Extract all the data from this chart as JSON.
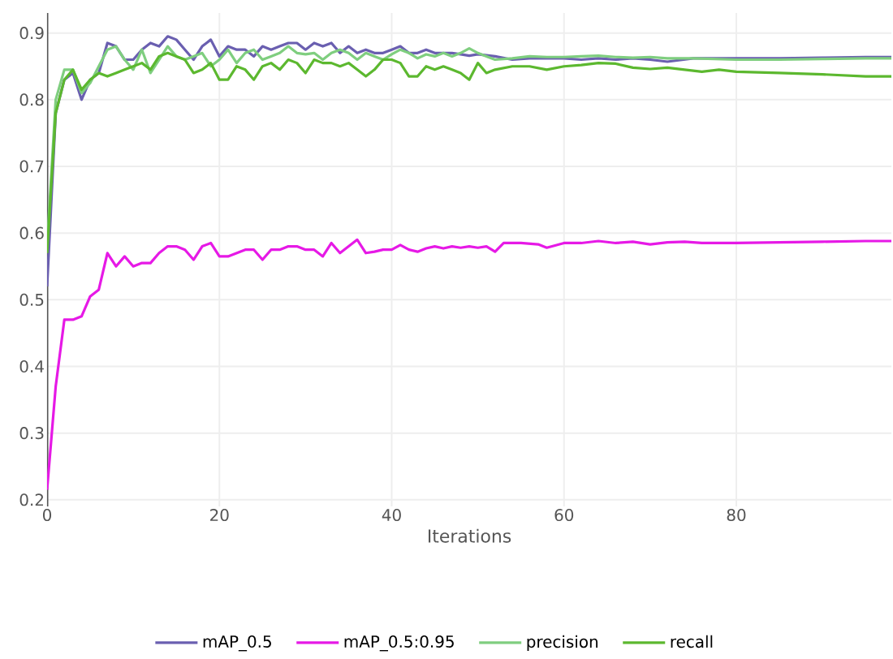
{
  "chart_data": {
    "type": "line",
    "xlabel": "Iterations",
    "xlim": [
      0,
      98
    ],
    "ylim": [
      0.19,
      0.93
    ],
    "xticks": [
      0,
      20,
      40,
      60,
      80
    ],
    "yticks": [
      0.2,
      0.3,
      0.4,
      0.5,
      0.6,
      0.7,
      0.8,
      0.9
    ],
    "grid": true,
    "legend": "bottom",
    "line_style": "solid",
    "marker": "none",
    "series": [
      {
        "name": "mAP_0.5",
        "color": "#6a5fb0",
        "x": [
          0,
          1,
          2,
          3,
          4,
          5,
          6,
          7,
          8,
          9,
          10,
          11,
          12,
          13,
          14,
          15,
          16,
          17,
          18,
          19,
          20,
          21,
          22,
          23,
          24,
          25,
          26,
          27,
          28,
          29,
          30,
          31,
          32,
          33,
          34,
          35,
          36,
          37,
          38,
          39,
          40,
          41,
          42,
          43,
          44,
          45,
          46,
          47,
          48,
          49,
          50,
          52,
          54,
          56,
          58,
          60,
          62,
          64,
          66,
          68,
          70,
          72,
          75,
          80,
          85,
          90,
          95,
          98
        ],
        "values": [
          0.52,
          0.78,
          0.83,
          0.84,
          0.8,
          0.83,
          0.84,
          0.885,
          0.88,
          0.86,
          0.86,
          0.875,
          0.885,
          0.88,
          0.895,
          0.89,
          0.875,
          0.86,
          0.88,
          0.89,
          0.865,
          0.88,
          0.875,
          0.875,
          0.865,
          0.88,
          0.875,
          0.88,
          0.885,
          0.885,
          0.875,
          0.885,
          0.88,
          0.885,
          0.87,
          0.88,
          0.87,
          0.875,
          0.87,
          0.87,
          0.875,
          0.88,
          0.87,
          0.87,
          0.875,
          0.87,
          0.87,
          0.87,
          0.868,
          0.866,
          0.868,
          0.865,
          0.86,
          0.862,
          0.862,
          0.862,
          0.86,
          0.862,
          0.86,
          0.862,
          0.86,
          0.857,
          0.862,
          0.862,
          0.862,
          0.863,
          0.864,
          0.864
        ]
      },
      {
        "name": "mAP_0.5:0.95",
        "color": "#e619e6",
        "x": [
          0,
          1,
          2,
          3,
          4,
          5,
          6,
          7,
          8,
          9,
          10,
          11,
          12,
          13,
          14,
          15,
          16,
          17,
          18,
          19,
          20,
          21,
          22,
          23,
          24,
          25,
          26,
          27,
          28,
          29,
          30,
          31,
          32,
          33,
          34,
          35,
          36,
          37,
          38,
          39,
          40,
          41,
          42,
          43,
          44,
          45,
          46,
          47,
          48,
          49,
          50,
          51,
          52,
          53,
          55,
          57,
          58,
          60,
          62,
          64,
          66,
          68,
          70,
          72,
          74,
          76,
          80,
          85,
          90,
          95,
          98
        ],
        "values": [
          0.215,
          0.37,
          0.47,
          0.47,
          0.475,
          0.505,
          0.515,
          0.57,
          0.55,
          0.565,
          0.55,
          0.555,
          0.555,
          0.57,
          0.58,
          0.58,
          0.575,
          0.56,
          0.58,
          0.585,
          0.565,
          0.565,
          0.57,
          0.575,
          0.575,
          0.56,
          0.575,
          0.575,
          0.58,
          0.58,
          0.575,
          0.575,
          0.565,
          0.585,
          0.57,
          0.58,
          0.59,
          0.57,
          0.572,
          0.575,
          0.575,
          0.582,
          0.575,
          0.572,
          0.577,
          0.58,
          0.577,
          0.58,
          0.578,
          0.58,
          0.578,
          0.58,
          0.572,
          0.585,
          0.585,
          0.583,
          0.578,
          0.585,
          0.585,
          0.588,
          0.585,
          0.587,
          0.583,
          0.586,
          0.587,
          0.585,
          0.585,
          0.586,
          0.587,
          0.588,
          0.588
        ]
      },
      {
        "name": "precision",
        "color": "#7fce7f",
        "x": [
          0,
          1,
          2,
          3,
          4,
          5,
          6,
          7,
          8,
          9,
          10,
          11,
          12,
          13,
          14,
          15,
          16,
          17,
          18,
          19,
          20,
          21,
          22,
          23,
          24,
          25,
          26,
          27,
          28,
          29,
          30,
          31,
          32,
          33,
          34,
          35,
          36,
          37,
          38,
          39,
          40,
          41,
          42,
          43,
          44,
          45,
          46,
          47,
          48,
          49,
          50,
          51,
          52,
          54,
          56,
          58,
          60,
          62,
          64,
          66,
          68,
          70,
          72,
          75,
          80,
          85,
          90,
          95,
          98
        ],
        "values": [
          0.58,
          0.8,
          0.845,
          0.845,
          0.81,
          0.825,
          0.85,
          0.875,
          0.88,
          0.86,
          0.845,
          0.875,
          0.84,
          0.86,
          0.88,
          0.865,
          0.86,
          0.865,
          0.87,
          0.85,
          0.86,
          0.875,
          0.855,
          0.87,
          0.875,
          0.86,
          0.865,
          0.87,
          0.88,
          0.87,
          0.868,
          0.87,
          0.86,
          0.87,
          0.875,
          0.87,
          0.86,
          0.87,
          0.865,
          0.86,
          0.868,
          0.875,
          0.87,
          0.862,
          0.868,
          0.865,
          0.87,
          0.865,
          0.87,
          0.877,
          0.87,
          0.865,
          0.86,
          0.862,
          0.865,
          0.864,
          0.864,
          0.865,
          0.866,
          0.864,
          0.863,
          0.864,
          0.862,
          0.862,
          0.86,
          0.86,
          0.861,
          0.862,
          0.862
        ]
      },
      {
        "name": "recall",
        "color": "#5cb82f",
        "x": [
          0,
          1,
          2,
          3,
          4,
          5,
          6,
          7,
          8,
          9,
          10,
          11,
          12,
          13,
          14,
          15,
          16,
          17,
          18,
          19,
          20,
          21,
          22,
          23,
          24,
          25,
          26,
          27,
          28,
          29,
          30,
          31,
          32,
          33,
          34,
          35,
          36,
          37,
          38,
          39,
          40,
          41,
          42,
          43,
          44,
          45,
          46,
          47,
          48,
          49,
          50,
          51,
          52,
          54,
          56,
          58,
          60,
          62,
          64,
          66,
          68,
          70,
          72,
          74,
          76,
          78,
          80,
          85,
          90,
          95,
          98
        ],
        "values": [
          0.57,
          0.78,
          0.83,
          0.845,
          0.815,
          0.83,
          0.84,
          0.835,
          0.84,
          0.845,
          0.85,
          0.855,
          0.845,
          0.865,
          0.87,
          0.865,
          0.86,
          0.84,
          0.845,
          0.855,
          0.83,
          0.83,
          0.85,
          0.845,
          0.83,
          0.85,
          0.855,
          0.845,
          0.86,
          0.855,
          0.84,
          0.86,
          0.855,
          0.855,
          0.85,
          0.855,
          0.845,
          0.835,
          0.845,
          0.86,
          0.86,
          0.855,
          0.835,
          0.835,
          0.85,
          0.845,
          0.85,
          0.845,
          0.84,
          0.83,
          0.855,
          0.84,
          0.845,
          0.85,
          0.85,
          0.845,
          0.85,
          0.852,
          0.855,
          0.854,
          0.848,
          0.846,
          0.848,
          0.845,
          0.842,
          0.845,
          0.842,
          0.84,
          0.838,
          0.835,
          0.835
        ]
      }
    ]
  }
}
